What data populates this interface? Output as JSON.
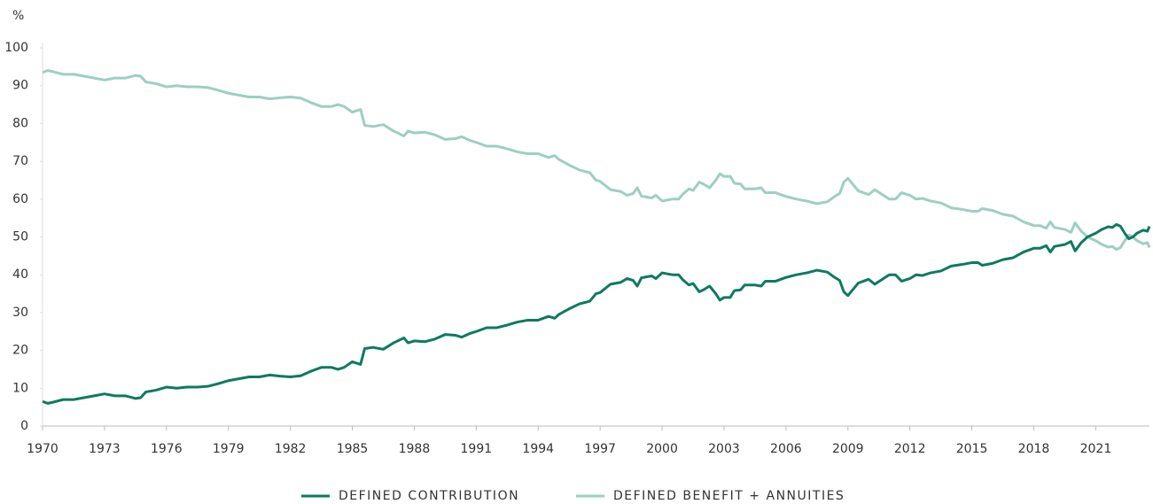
{
  "chart_data": {
    "type": "line",
    "y_label": "%",
    "x": [
      1970,
      1970.25,
      1970.5,
      1971,
      1971.5,
      1972,
      1972.5,
      1973,
      1973.5,
      1974,
      1974.5,
      1974.75,
      1975,
      1975.5,
      1976,
      1976.5,
      1977,
      1977.5,
      1978,
      1978.5,
      1979,
      1979.5,
      1980,
      1980.5,
      1981,
      1981.5,
      1982,
      1982.5,
      1983,
      1983.5,
      1984,
      1984.3,
      1984.6,
      1985,
      1985.4,
      1985.6,
      1986,
      1986.5,
      1987,
      1987.5,
      1987.7,
      1988,
      1988.5,
      1989,
      1989.5,
      1990,
      1990.3,
      1990.7,
      1991,
      1991.5,
      1992,
      1992.5,
      1993,
      1993.5,
      1994,
      1994.5,
      1994.8,
      1995,
      1995.5,
      1996,
      1996.5,
      1996.8,
      1997,
      1997.5,
      1998,
      1998.3,
      1998.6,
      1998.8,
      1999,
      1999.5,
      1999.7,
      2000,
      2000.5,
      2000.8,
      2001,
      2001.3,
      2001.5,
      2001.8,
      2002,
      2002.3,
      2002.6,
      2002.8,
      2003,
      2003.3,
      2003.5,
      2003.8,
      2004,
      2004.5,
      2004.8,
      2005,
      2005.5,
      2006,
      2006.5,
      2007,
      2007.5,
      2008,
      2008.3,
      2008.6,
      2008.8,
      2009,
      2009.5,
      2010,
      2010.3,
      2010.8,
      2011,
      2011.3,
      2011.6,
      2012,
      2012.3,
      2012.6,
      2013,
      2013.5,
      2014,
      2014.5,
      2015,
      2015.3,
      2015.5,
      2016,
      2016.5,
      2017,
      2017.5,
      2018,
      2018.3,
      2018.6,
      2018.8,
      2019,
      2019.5,
      2019.8,
      2020,
      2020.3,
      2020.6,
      2021,
      2021.3,
      2021.6,
      2021.8,
      2022,
      2022.2,
      2022.4,
      2022.6,
      2022.8,
      2023,
      2023.3,
      2023.5,
      2023.6
    ],
    "series": [
      {
        "name": "DEFINED CONTRIBUTION",
        "color": "#0e7a5f",
        "values": [
          6.5,
          6,
          6.3,
          7,
          7,
          7.5,
          8,
          8.5,
          8,
          8,
          7.3,
          7.5,
          9,
          9.5,
          10.3,
          10,
          10.3,
          10.3,
          10.5,
          11.2,
          12,
          12.5,
          13,
          13,
          13.5,
          13.2,
          13,
          13.3,
          14.5,
          15.5,
          15.5,
          15,
          15.5,
          17,
          16.3,
          20.5,
          20.8,
          20.3,
          22,
          23.3,
          22,
          22.5,
          22.3,
          23,
          24.2,
          24,
          23.5,
          24.5,
          25,
          26,
          26,
          26.7,
          27.5,
          28,
          28,
          29,
          28.5,
          29.5,
          31,
          32.3,
          33,
          35,
          35.3,
          37.5,
          38,
          39,
          38.5,
          37,
          39.2,
          39.7,
          39,
          40.5,
          40,
          40,
          38.7,
          37.3,
          37.7,
          35.5,
          36,
          37,
          35,
          33.3,
          34,
          34,
          35.8,
          36,
          37.3,
          37.3,
          37,
          38.3,
          38.3,
          39.3,
          40,
          40.5,
          41.2,
          40.7,
          39.5,
          38.5,
          35.5,
          34.5,
          37.8,
          38.8,
          37.5,
          39.3,
          40,
          40,
          38.3,
          39,
          40,
          39.8,
          40.5,
          41,
          42.3,
          42.7,
          43.2,
          43.2,
          42.5,
          43,
          44,
          44.5,
          46,
          47,
          47,
          47.7,
          46,
          47.5,
          48,
          48.8,
          46.3,
          48.5,
          50,
          51,
          52,
          52.7,
          52.5,
          53.3,
          52.8,
          51,
          49.5,
          50,
          51,
          51.8,
          51.5,
          52.8
        ]
      },
      {
        "name": "DEFINED BENEFIT + ANNUITIES",
        "color": "#9ccfc2",
        "values": [
          93.5,
          94,
          93.7,
          93,
          93,
          92.5,
          92,
          91.5,
          92,
          92,
          92.7,
          92.5,
          91,
          90.5,
          89.7,
          90,
          89.7,
          89.7,
          89.5,
          88.8,
          88,
          87.5,
          87,
          87,
          86.5,
          86.8,
          87,
          86.7,
          85.5,
          84.5,
          84.5,
          85,
          84.5,
          83,
          83.7,
          79.5,
          79.2,
          79.7,
          78,
          76.7,
          78,
          77.5,
          77.7,
          77,
          75.8,
          76,
          76.5,
          75.5,
          75,
          74,
          74,
          73.3,
          72.5,
          72,
          72,
          71,
          71.5,
          70.5,
          69,
          67.7,
          67,
          65,
          64.7,
          62.5,
          62,
          61,
          61.5,
          63,
          60.8,
          60.3,
          61,
          59.5,
          60,
          60,
          61.3,
          62.7,
          62.3,
          64.5,
          64,
          63,
          65,
          66.7,
          66,
          66,
          64.2,
          64,
          62.7,
          62.7,
          63,
          61.7,
          61.7,
          60.7,
          60,
          59.5,
          58.8,
          59.3,
          60.5,
          61.5,
          64.5,
          65.5,
          62.2,
          61.2,
          62.5,
          60.7,
          60,
          60,
          61.7,
          61,
          60,
          60.2,
          59.5,
          59,
          57.7,
          57.3,
          56.8,
          56.8,
          57.5,
          57,
          56,
          55.5,
          54,
          53,
          53,
          52.3,
          54,
          52.5,
          52,
          51.2,
          53.7,
          51.5,
          50,
          49,
          48,
          47.3,
          47.5,
          46.7,
          47.2,
          49,
          50.5,
          50,
          49,
          48.2,
          48.5,
          47.2
        ]
      }
    ],
    "xlim": [
      1970,
      2023.6
    ],
    "xticks": [
      1970,
      1973,
      1976,
      1979,
      1982,
      1985,
      1988,
      1991,
      1994,
      1997,
      2000,
      2003,
      2006,
      2009,
      2012,
      2015,
      2018,
      2021
    ],
    "ylim": [
      0,
      100
    ],
    "yticks": [
      0,
      10,
      20,
      30,
      40,
      50,
      60,
      70,
      80,
      90,
      100
    ],
    "legend": "bottom"
  }
}
